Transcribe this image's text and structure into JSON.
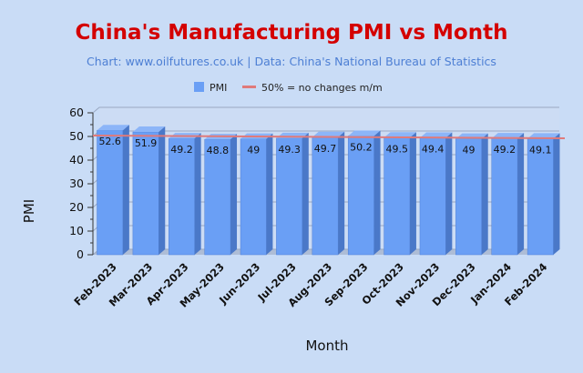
{
  "chart_data": {
    "type": "bar",
    "title": "China's Manufacturing PMI vs Month",
    "subtitle": "Chart: www.oilfutures.co.uk | Data: China's National Bureau of Statistics",
    "xlabel": "Month",
    "ylabel": "PMI",
    "ylim": [
      0,
      60
    ],
    "yticks": [
      0,
      10,
      20,
      30,
      40,
      50,
      60
    ],
    "grid": true,
    "legend_position": "top-center",
    "categories": [
      "Feb-2023",
      "Mar-2023",
      "Apr-2023",
      "May-2023",
      "Jun-2023",
      "Jul-2023",
      "Aug-2023",
      "Sep-2023",
      "Oct-2023",
      "Nov-2023",
      "Dec-2023",
      "Jan-2024",
      "Feb-2024"
    ],
    "series": [
      {
        "name": "PMI",
        "type": "bar",
        "color": "#6a9ff5",
        "values": [
          52.6,
          51.9,
          49.2,
          48.8,
          49,
          49.3,
          49.7,
          50.2,
          49.5,
          49.4,
          49,
          49.2,
          49.1
        ],
        "labels": [
          "52.6",
          "51.9",
          "49.2",
          "48.8",
          "49",
          "49.3",
          "49.7",
          "50.2",
          "49.5",
          "49.4",
          "49",
          "49.2",
          "49.1"
        ]
      },
      {
        "name": "50% = no changes m/m",
        "type": "line",
        "color": "#e07a7a",
        "values": [
          50,
          50,
          50,
          50,
          50,
          50,
          50,
          50,
          50,
          50,
          50,
          50,
          50
        ]
      }
    ]
  }
}
